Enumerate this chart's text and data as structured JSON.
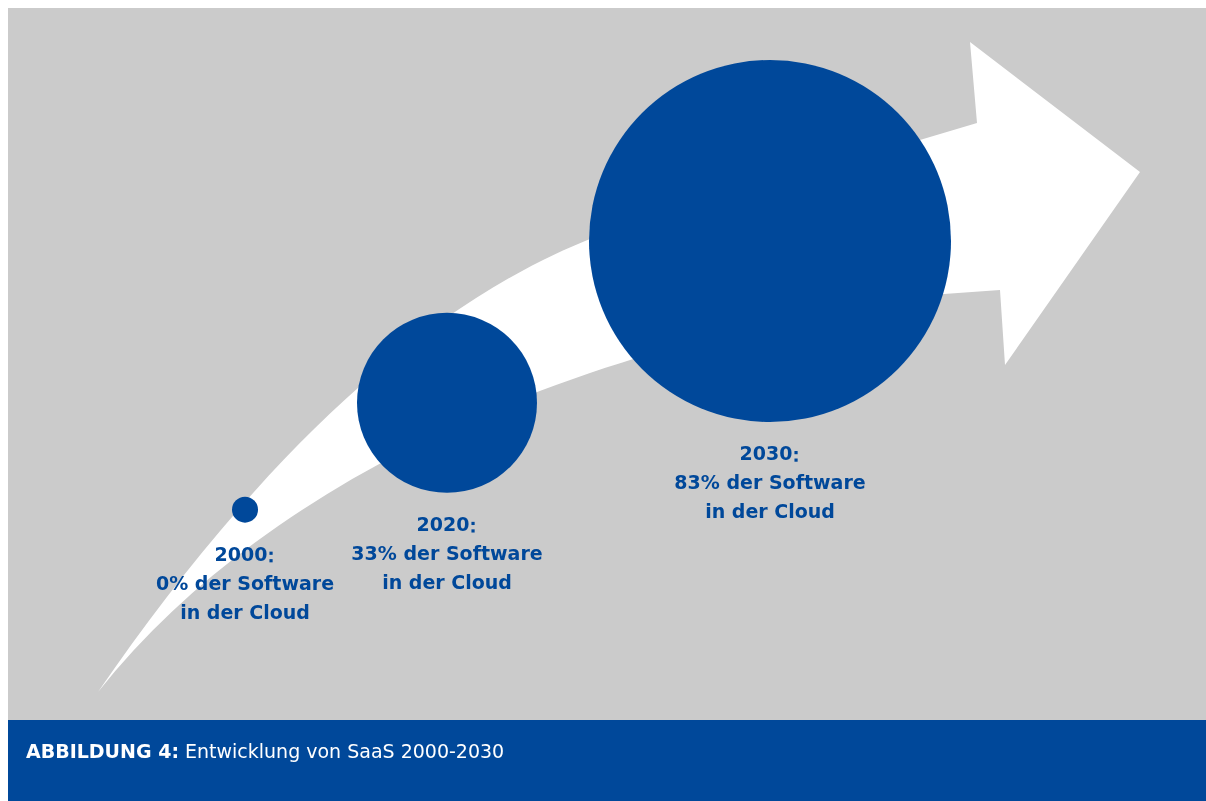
{
  "chart_data": {
    "type": "other",
    "title": "ABBILDUNG 4: Entwicklung von SaaS 2000-2030",
    "categories": [
      "2000",
      "2020",
      "2030"
    ],
    "values": [
      0,
      33,
      83
    ],
    "value_labels": [
      "0% der Software\nin der Cloud",
      "33% der Software\nin der Cloud",
      "83% der Software\nin der Cloud"
    ],
    "color": "#00489a"
  }
}
